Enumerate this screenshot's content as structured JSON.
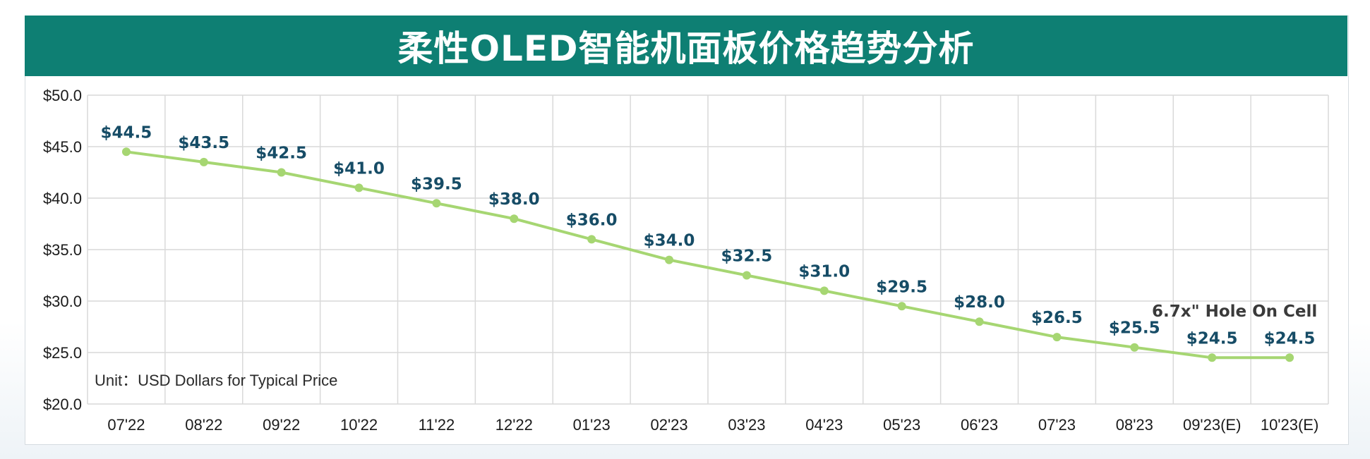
{
  "chart_data": {
    "type": "line",
    "title": "柔性OLED智能机面板价格趋势分析",
    "categories": [
      "07'22",
      "08'22",
      "09'22",
      "10'22",
      "11'22",
      "12'22",
      "01'23",
      "02'23",
      "03'23",
      "04'23",
      "05'23",
      "06'23",
      "07'23",
      "08'23",
      "09'23(E)",
      "10'23(E)"
    ],
    "values": [
      44.5,
      43.5,
      42.5,
      41.0,
      39.5,
      38.0,
      36.0,
      34.0,
      32.5,
      31.0,
      29.5,
      28.0,
      26.5,
      25.5,
      24.5,
      24.5
    ],
    "data_labels": [
      "$44.5",
      "$43.5",
      "$42.5",
      "$41.0",
      "$39.5",
      "$38.0",
      "$36.0",
      "$34.0",
      "$32.5",
      "$31.0",
      "$29.5",
      "$28.0",
      "$26.5",
      "$25.5",
      "$24.5",
      "$24.5"
    ],
    "yticks": [
      "$20.0",
      "$25.0",
      "$30.0",
      "$35.0",
      "$40.0",
      "$45.0",
      "$50.0"
    ],
    "ylim": [
      20,
      50
    ],
    "grid": true,
    "line_color": "#a6d672",
    "label_color": "#164c66",
    "header_color": "#0e7f73",
    "note": "Unit：USD Dollars for Typical Price",
    "annotation": "6.7x\" Hole On Cell"
  }
}
